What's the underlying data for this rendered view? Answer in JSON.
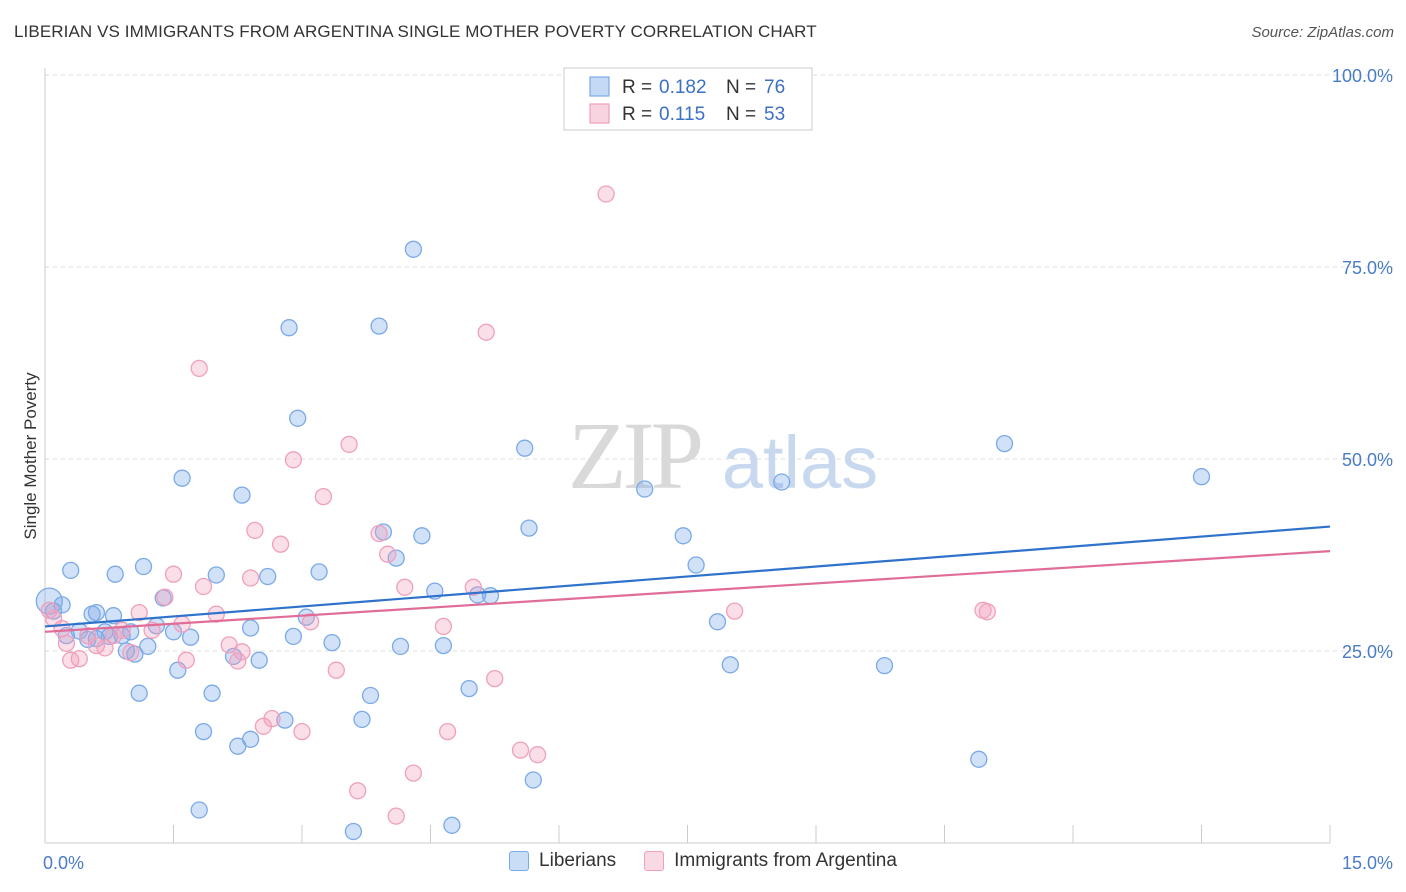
{
  "title": "LIBERIAN VS IMMIGRANTS FROM ARGENTINA SINGLE MOTHER POVERTY CORRELATION CHART",
  "source": "Source: ZipAtlas.com",
  "watermark": {
    "zip": "ZIP",
    "atlas": "atlas"
  },
  "chart_data": {
    "type": "scatter",
    "title": "LIBERIAN VS IMMIGRANTS FROM ARGENTINA SINGLE MOTHER POVERTY CORRELATION CHART",
    "xlabel": "",
    "ylabel": "Single Mother Poverty",
    "xlim": [
      0,
      15
    ],
    "ylim": [
      0,
      100
    ],
    "x_tick_labels": [
      "0.0%",
      "15.0%"
    ],
    "y_ticks": [
      25,
      50,
      75,
      100
    ],
    "y_tick_labels": [
      "25.0%",
      "50.0%",
      "75.0%",
      "100.0%"
    ],
    "grid": true,
    "legend_position": "top-center",
    "series": [
      {
        "name": "Liberians",
        "color": "#7aaae8",
        "line_color": "#2f72cc",
        "r": "0.182",
        "n": "76",
        "trend": [
          [
            0,
            28.2
          ],
          [
            15,
            41.2
          ]
        ],
        "points": [
          [
            0.05,
            31.5
          ],
          [
            0.1,
            30.2
          ],
          [
            0.2,
            31.0
          ],
          [
            0.25,
            27.0
          ],
          [
            0.3,
            35.5
          ],
          [
            0.4,
            27.6
          ],
          [
            0.5,
            26.5
          ],
          [
            0.55,
            29.8
          ],
          [
            0.6,
            26.6
          ],
          [
            0.6,
            30.0
          ],
          [
            0.7,
            27.5
          ],
          [
            0.75,
            26.9
          ],
          [
            0.8,
            29.6
          ],
          [
            0.82,
            35.0
          ],
          [
            0.9,
            27.0
          ],
          [
            0.95,
            25.0
          ],
          [
            1.0,
            27.5
          ],
          [
            1.05,
            24.6
          ],
          [
            1.1,
            19.5
          ],
          [
            1.15,
            36.0
          ],
          [
            1.2,
            25.6
          ],
          [
            1.3,
            28.3
          ],
          [
            1.38,
            31.9
          ],
          [
            1.5,
            27.5
          ],
          [
            1.55,
            22.5
          ],
          [
            1.6,
            47.5
          ],
          [
            1.7,
            26.8
          ],
          [
            1.8,
            4.3
          ],
          [
            1.85,
            14.5
          ],
          [
            1.95,
            19.5
          ],
          [
            2.0,
            34.9
          ],
          [
            2.2,
            24.3
          ],
          [
            2.25,
            12.6
          ],
          [
            2.3,
            45.3
          ],
          [
            2.4,
            13.5
          ],
          [
            2.4,
            28.0
          ],
          [
            2.5,
            23.8
          ],
          [
            2.6,
            34.7
          ],
          [
            2.8,
            16.0
          ],
          [
            2.85,
            67.1
          ],
          [
            2.9,
            26.9
          ],
          [
            2.95,
            55.3
          ],
          [
            3.05,
            29.4
          ],
          [
            3.2,
            35.3
          ],
          [
            3.35,
            26.1
          ],
          [
            3.6,
            1.5
          ],
          [
            3.7,
            16.1
          ],
          [
            3.8,
            19.2
          ],
          [
            3.9,
            67.3
          ],
          [
            3.95,
            40.5
          ],
          [
            4.1,
            37.1
          ],
          [
            4.15,
            25.6
          ],
          [
            4.3,
            77.3
          ],
          [
            4.4,
            40.0
          ],
          [
            4.55,
            32.8
          ],
          [
            4.65,
            25.7
          ],
          [
            4.75,
            2.3
          ],
          [
            4.95,
            20.1
          ],
          [
            5.05,
            32.3
          ],
          [
            5.2,
            32.2
          ],
          [
            5.6,
            51.4
          ],
          [
            5.65,
            41.0
          ],
          [
            5.7,
            8.2
          ],
          [
            7.0,
            46.1
          ],
          [
            7.45,
            40.0
          ],
          [
            7.6,
            36.2
          ],
          [
            7.85,
            28.8
          ],
          [
            8.0,
            23.2
          ],
          [
            8.6,
            47.0
          ],
          [
            9.8,
            23.1
          ],
          [
            10.9,
            10.9
          ],
          [
            11.2,
            52.0
          ],
          [
            13.5,
            47.7
          ]
        ]
      },
      {
        "name": "Immigrants from Argentina",
        "color": "#f0a0bc",
        "line_color": "#e06c98",
        "r": "0.115",
        "n": "53",
        "trend": [
          [
            0,
            27.5
          ],
          [
            15,
            38.0
          ]
        ],
        "points": [
          [
            0.05,
            30.3
          ],
          [
            0.1,
            29.2
          ],
          [
            0.2,
            27.9
          ],
          [
            0.25,
            26.0
          ],
          [
            0.3,
            23.8
          ],
          [
            0.4,
            24.0
          ],
          [
            0.5,
            27.0
          ],
          [
            0.6,
            25.7
          ],
          [
            0.7,
            25.4
          ],
          [
            0.8,
            27.0
          ],
          [
            0.9,
            27.7
          ],
          [
            1.0,
            24.8
          ],
          [
            1.1,
            30.0
          ],
          [
            1.25,
            27.7
          ],
          [
            1.4,
            32.0
          ],
          [
            1.5,
            35.0
          ],
          [
            1.6,
            28.5
          ],
          [
            1.65,
            23.8
          ],
          [
            1.8,
            61.8
          ],
          [
            1.85,
            33.4
          ],
          [
            2.0,
            29.8
          ],
          [
            2.15,
            25.8
          ],
          [
            2.25,
            23.7
          ],
          [
            2.3,
            24.9
          ],
          [
            2.4,
            34.5
          ],
          [
            2.45,
            40.7
          ],
          [
            2.55,
            15.2
          ],
          [
            2.65,
            16.2
          ],
          [
            2.75,
            38.9
          ],
          [
            2.9,
            49.9
          ],
          [
            3.0,
            14.5
          ],
          [
            3.1,
            28.8
          ],
          [
            3.25,
            45.1
          ],
          [
            3.4,
            22.5
          ],
          [
            3.55,
            51.9
          ],
          [
            3.65,
            6.8
          ],
          [
            3.9,
            40.3
          ],
          [
            4.0,
            37.6
          ],
          [
            4.1,
            3.5
          ],
          [
            4.2,
            33.3
          ],
          [
            4.3,
            9.1
          ],
          [
            4.65,
            28.2
          ],
          [
            4.7,
            14.5
          ],
          [
            5.0,
            33.3
          ],
          [
            5.15,
            66.5
          ],
          [
            5.25,
            21.4
          ],
          [
            5.55,
            12.1
          ],
          [
            5.75,
            11.5
          ],
          [
            6.55,
            84.5
          ],
          [
            8.05,
            30.2
          ],
          [
            10.95,
            30.3
          ],
          [
            11.0,
            30.1
          ]
        ]
      }
    ]
  }
}
